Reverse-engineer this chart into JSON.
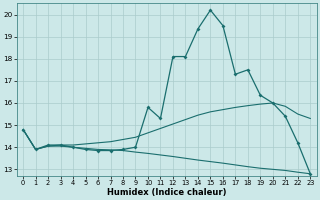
{
  "xlabel": "Humidex (Indice chaleur)",
  "xlim": [
    -0.5,
    23.5
  ],
  "ylim": [
    12.7,
    20.5
  ],
  "yticks": [
    13,
    14,
    15,
    16,
    17,
    18,
    19,
    20
  ],
  "xticks": [
    0,
    1,
    2,
    3,
    4,
    5,
    6,
    7,
    8,
    9,
    10,
    11,
    12,
    13,
    14,
    15,
    16,
    17,
    18,
    19,
    20,
    21,
    22,
    23
  ],
  "background_color": "#cce8e8",
  "grid_color": "#aacccc",
  "line_color": "#1a6e6e",
  "line1_x": [
    0,
    1,
    2,
    3,
    4,
    5,
    6,
    7,
    8,
    9,
    10,
    11,
    12,
    13,
    14,
    15,
    16,
    17,
    18,
    19,
    20,
    21,
    22,
    23
  ],
  "line1_y": [
    14.8,
    13.9,
    14.1,
    14.1,
    14.0,
    13.9,
    13.85,
    13.85,
    13.9,
    14.0,
    15.8,
    15.3,
    18.1,
    18.1,
    19.35,
    20.2,
    19.5,
    17.3,
    17.5,
    16.35,
    16.0,
    15.4,
    14.2,
    12.8
  ],
  "line2_x": [
    0,
    1,
    2,
    3,
    4,
    5,
    6,
    7,
    8,
    9,
    10,
    11,
    12,
    13,
    14,
    15,
    16,
    17,
    18,
    19,
    20,
    21,
    22,
    23
  ],
  "line2_y": [
    14.8,
    13.9,
    14.05,
    14.05,
    14.0,
    13.95,
    13.9,
    13.88,
    13.85,
    13.78,
    13.72,
    13.65,
    13.58,
    13.5,
    13.42,
    13.35,
    13.28,
    13.2,
    13.12,
    13.05,
    13.0,
    12.95,
    12.87,
    12.8
  ],
  "line3_x": [
    0,
    1,
    2,
    3,
    4,
    5,
    6,
    7,
    8,
    9,
    10,
    11,
    12,
    13,
    14,
    15,
    16,
    17,
    18,
    19,
    20,
    21,
    22,
    23
  ],
  "line3_y": [
    14.8,
    13.9,
    14.05,
    14.1,
    14.1,
    14.15,
    14.2,
    14.25,
    14.35,
    14.45,
    14.65,
    14.85,
    15.05,
    15.25,
    15.45,
    15.6,
    15.7,
    15.8,
    15.88,
    15.95,
    16.0,
    15.85,
    15.5,
    15.3
  ]
}
